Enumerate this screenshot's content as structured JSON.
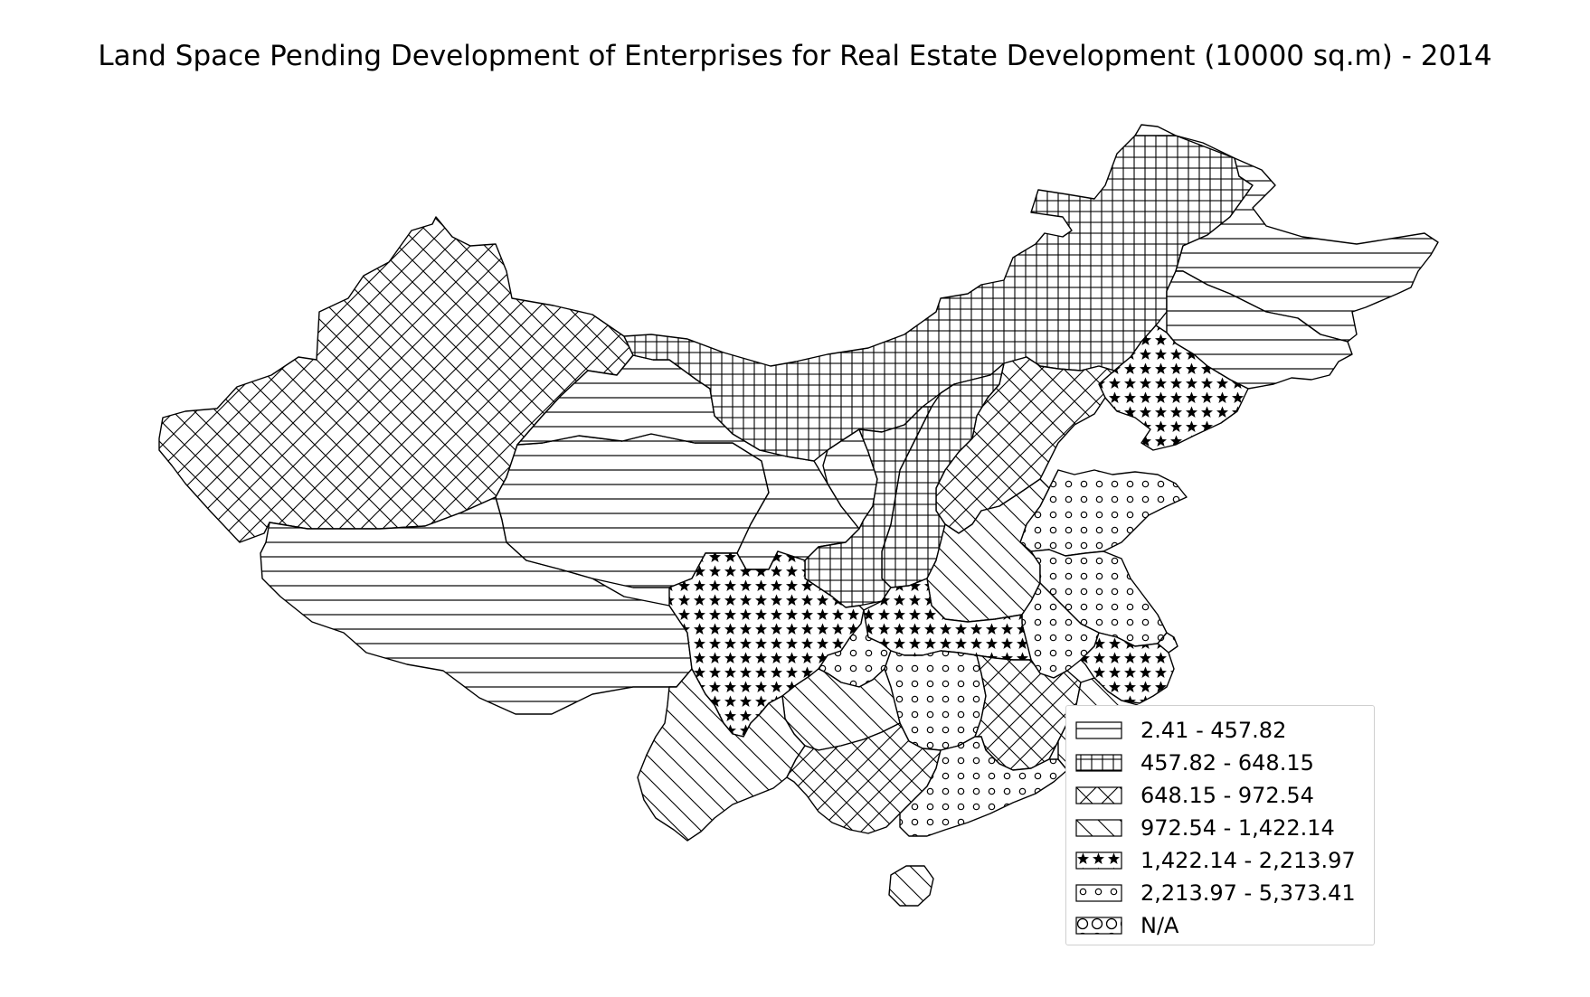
{
  "title": "Land Space Pending Development of Enterprises for Real Estate Development (10000 sq.m) - 2014",
  "legend": {
    "placement": "lower-right",
    "items": [
      {
        "label": "2.41 - 457.82",
        "pattern": "horizontal-lines"
      },
      {
        "label": "457.82 - 648.15",
        "pattern": "grid"
      },
      {
        "label": "648.15 - 972.54",
        "pattern": "diagonal-crosshatch"
      },
      {
        "label": "972.54 - 1,422.14",
        "pattern": "backslash-lines"
      },
      {
        "label": "1,422.14 - 2,213.97",
        "pattern": "stars"
      },
      {
        "label": "2,213.97 - 5,373.41",
        "pattern": "small-circles"
      },
      {
        "label": "N/A",
        "pattern": "large-circles"
      }
    ]
  },
  "colors": {
    "stroke": "#000000",
    "fill": "#ffffff",
    "legend_border": "#cfcfcf"
  }
}
